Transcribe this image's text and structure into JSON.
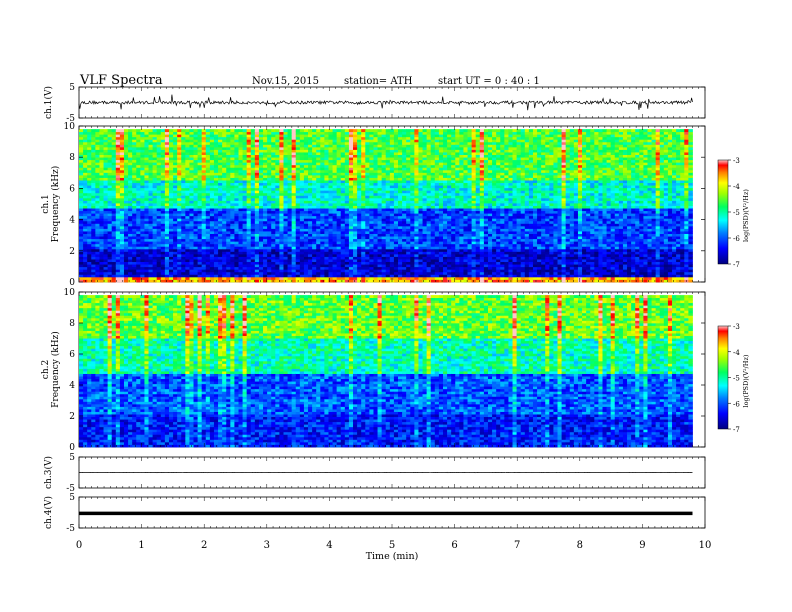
{
  "header": {
    "title": "VLF  Spectra",
    "date": "Nov.15, 2015",
    "station": "station= ATH",
    "start_ut": "start  UT =   0 : 40 : 1"
  },
  "chart_data": [
    {
      "type": "line",
      "panel": "ch1-waveform",
      "ylabel": "ch.1(V)",
      "ylim": [
        -5,
        5
      ],
      "yticks": [
        "5",
        "-5"
      ],
      "x_range_min": [
        0,
        9.8
      ],
      "description_values": {
        "baseline": 0.0,
        "typical_amplitude": 1.0,
        "max_spike": 2.5
      },
      "color": "#000000"
    },
    {
      "type": "heatmap",
      "panel": "ch1-spectrogram",
      "ylabel": "Frequency  (kHz)",
      "channel_label": "ch.1",
      "ylim": [
        0,
        10
      ],
      "yticks": [
        "0",
        "2",
        "4",
        "6",
        "8",
        "10"
      ],
      "x_range_min": [
        0,
        9.8
      ],
      "colorbar": {
        "label": "log(PSD)(V²/Hz)",
        "range": [
          -7,
          -3
        ],
        "ticks": [
          "-3",
          "-4",
          "-5",
          "-6",
          "-7"
        ]
      },
      "bands_khz": [
        {
          "range": [
            0,
            0.3
          ],
          "level": -3.6
        },
        {
          "range": [
            0.3,
            2.2
          ],
          "level": -6.6
        },
        {
          "range": [
            2.2,
            4.8
          ],
          "level": -6.1
        },
        {
          "range": [
            4.8,
            6.5
          ],
          "level": -5.2
        },
        {
          "range": [
            6.5,
            9.8
          ],
          "level": -4.6
        }
      ]
    },
    {
      "type": "heatmap",
      "panel": "ch2-spectrogram",
      "ylabel": "Frequency  (kHz)",
      "channel_label": "ch.2",
      "ylim": [
        0,
        10
      ],
      "yticks": [
        "0",
        "2",
        "4",
        "6",
        "8",
        "10"
      ],
      "x_range_min": [
        0,
        9.8
      ],
      "colorbar": {
        "label": "log(PSD)(V²/Hz)",
        "range": [
          -7,
          -3
        ],
        "ticks": [
          "-3",
          "-4",
          "-5",
          "-6",
          "-7"
        ]
      },
      "bands_khz": [
        {
          "range": [
            0,
            2.2
          ],
          "level": -6.3
        },
        {
          "range": [
            2.2,
            4.8
          ],
          "level": -6.0
        },
        {
          "range": [
            4.8,
            7.0
          ],
          "level": -5.1
        },
        {
          "range": [
            7.0,
            9.8
          ],
          "level": -4.5
        }
      ]
    },
    {
      "type": "line",
      "panel": "ch3-waveform",
      "ylabel": "ch.3(V)",
      "ylim": [
        -5,
        5
      ],
      "yticks": [
        "5",
        "-5"
      ],
      "x_range_min": [
        0,
        9.8
      ],
      "description_values": {
        "baseline": 0.0
      },
      "color": "#000000"
    },
    {
      "type": "line",
      "panel": "ch4-waveform",
      "ylabel": "ch.4(V)",
      "ylim": [
        -5,
        5
      ],
      "yticks": [
        "5",
        "-5"
      ],
      "x_range_min": [
        0,
        9.8
      ],
      "description_values": {
        "baseline": -0.3
      },
      "color": "#000000"
    }
  ],
  "x_axis": {
    "label": "Time  (min)",
    "range": [
      0,
      10
    ],
    "ticks": [
      "0",
      "1",
      "2",
      "3",
      "4",
      "5",
      "6",
      "7",
      "8",
      "9",
      "10"
    ]
  }
}
